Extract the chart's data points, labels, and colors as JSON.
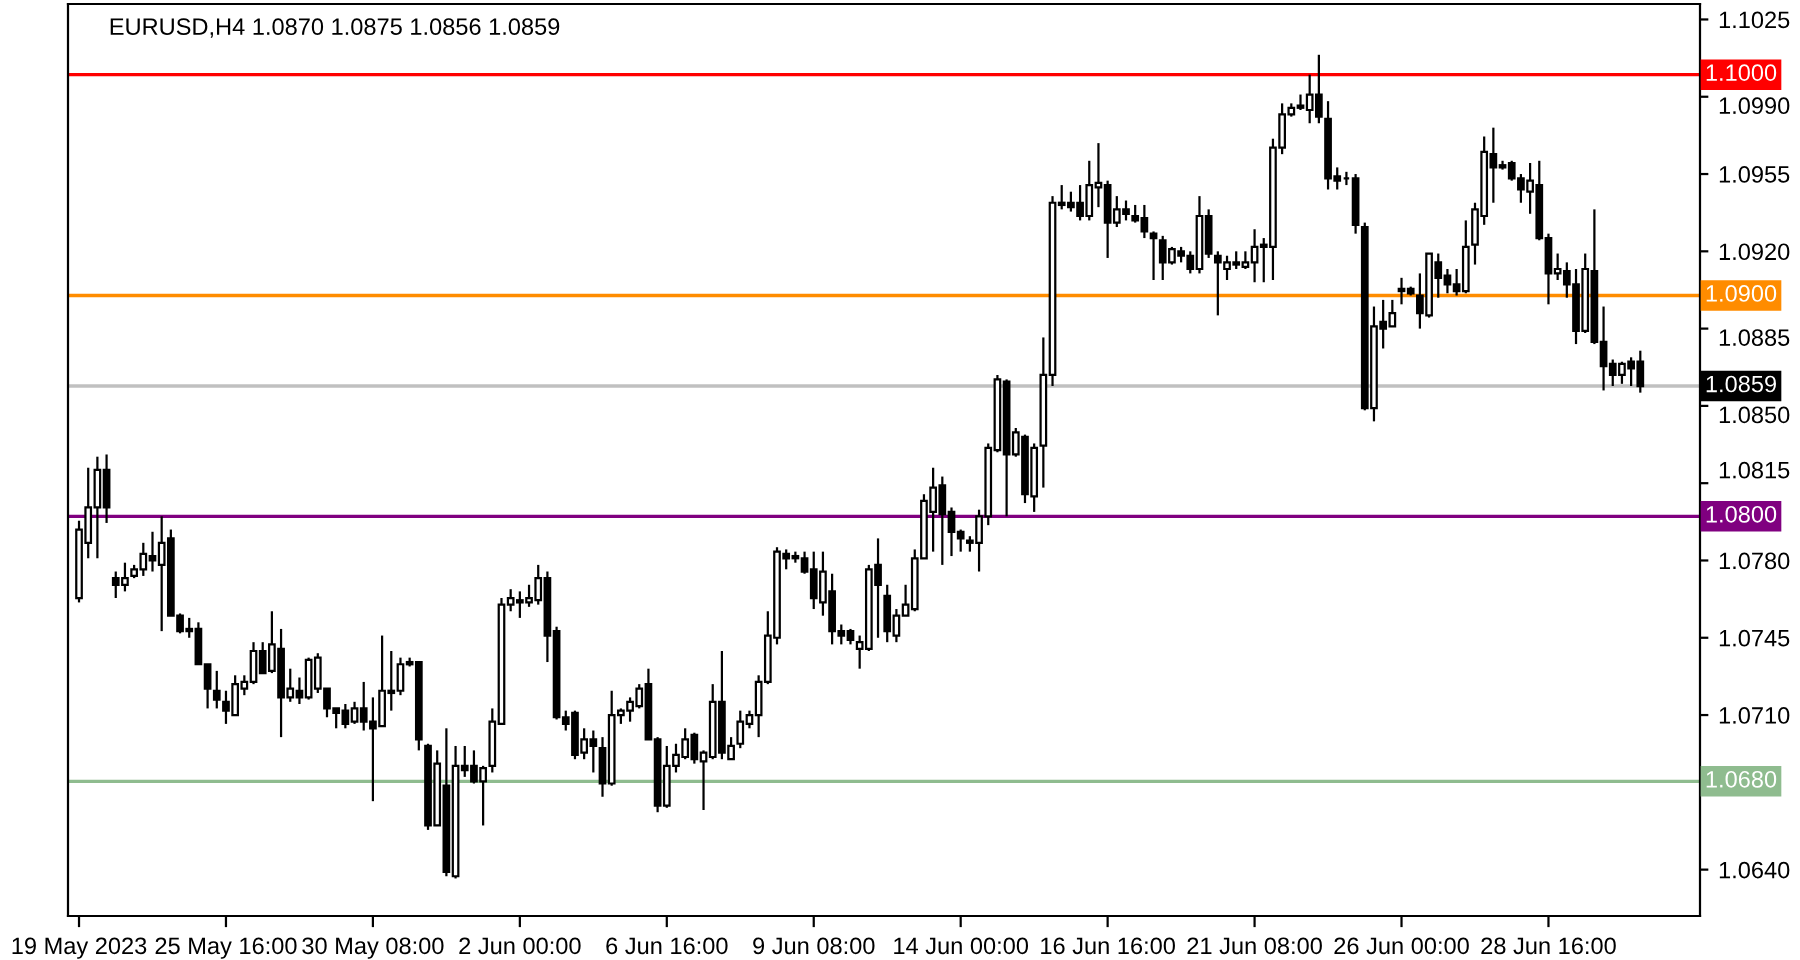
{
  "chart_data": {
    "type": "candlestick",
    "title": "EURUSD,H4 1.0870 1.0875 1.0856 1.0859",
    "categories": [
      "19 May 2023",
      null,
      null,
      null,
      null,
      null,
      null,
      null,
      null,
      null,
      null,
      null,
      null,
      null,
      null,
      null,
      "25 May 16:00",
      null,
      null,
      null,
      null,
      null,
      null,
      null,
      null,
      null,
      null,
      null,
      null,
      null,
      null,
      null,
      "30 May 08:00",
      null,
      null,
      null,
      null,
      null,
      null,
      null,
      null,
      null,
      null,
      null,
      null,
      null,
      null,
      null,
      "2 Jun 00:00",
      null,
      null,
      null,
      null,
      null,
      null,
      null,
      null,
      null,
      null,
      null,
      null,
      null,
      null,
      null,
      "6 Jun 16:00",
      null,
      null,
      null,
      null,
      null,
      null,
      null,
      null,
      null,
      null,
      null,
      null,
      null,
      null,
      null,
      "9 Jun 08:00",
      null,
      null,
      null,
      null,
      null,
      null,
      null,
      null,
      null,
      null,
      null,
      null,
      null,
      null,
      null,
      "14 Jun 00:00",
      null,
      null,
      null,
      null,
      null,
      null,
      null,
      null,
      null,
      null,
      null,
      null,
      null,
      null,
      null,
      "16 Jun 16:00",
      null,
      null,
      null,
      null,
      null,
      null,
      null,
      null,
      null,
      null,
      null,
      null,
      null,
      null,
      null,
      "21 Jun 08:00",
      null,
      null,
      null,
      null,
      null,
      null,
      null,
      null,
      null,
      null,
      null,
      null,
      null,
      null,
      null,
      "26 Jun 00:00",
      null,
      null,
      null,
      null,
      null,
      null,
      null,
      null,
      null,
      null,
      null,
      null,
      null,
      null,
      null,
      "28 Jun 16:00",
      null,
      null,
      null,
      null,
      null,
      null,
      null,
      null,
      null,
      null
    ],
    "ohlc": [
      [
        1.0763,
        1.0798,
        1.0761,
        1.0794
      ],
      [
        1.0788,
        1.0822,
        1.0781,
        1.0804
      ],
      [
        1.0804,
        1.0827,
        1.0781,
        1.0821
      ],
      [
        1.0821,
        1.0828,
        1.0797,
        1.0804
      ],
      [
        1.0772,
        1.0775,
        1.0763,
        1.0769
      ],
      [
        1.0769,
        1.0779,
        1.0766,
        1.0772
      ],
      [
        1.0773,
        1.0778,
        1.0772,
        1.0776
      ],
      [
        1.0776,
        1.0788,
        1.0773,
        1.0783
      ],
      [
        1.0782,
        1.0793,
        1.0775,
        1.078
      ],
      [
        1.0778,
        1.08,
        1.0748,
        1.0788
      ],
      [
        1.079,
        1.0794,
        1.0755,
        1.0755
      ],
      [
        1.0755,
        1.0756,
        1.0747,
        1.0748
      ],
      [
        1.0749,
        1.0754,
        1.0745,
        1.0748
      ],
      [
        1.0749,
        1.0752,
        1.0733,
        1.0733
      ],
      [
        1.0733,
        1.0733,
        1.0713,
        1.0722
      ],
      [
        1.0721,
        1.073,
        1.0713,
        1.0717
      ],
      [
        1.0716,
        1.0721,
        1.0706,
        1.0712
      ],
      [
        1.071,
        1.0728,
        1.071,
        1.0724
      ],
      [
        1.0722,
        1.0728,
        1.0719,
        1.0725
      ],
      [
        1.0725,
        1.0743,
        1.0724,
        1.0739
      ],
      [
        1.0739,
        1.0743,
        1.0729,
        1.0729
      ],
      [
        1.073,
        1.0757,
        1.0729,
        1.0742
      ],
      [
        1.074,
        1.0749,
        1.07,
        1.0718
      ],
      [
        1.0718,
        1.0731,
        1.0716,
        1.0722
      ],
      [
        1.0721,
        1.0727,
        1.0715,
        1.0718
      ],
      [
        1.0718,
        1.0736,
        1.0717,
        1.0735
      ],
      [
        1.0722,
        1.0738,
        1.072,
        1.0736
      ],
      [
        1.0722,
        1.0722,
        1.0709,
        1.0713
      ],
      [
        1.0713,
        1.0713,
        1.0704,
        1.0711
      ],
      [
        1.0712,
        1.0715,
        1.0704,
        1.0706
      ],
      [
        1.0707,
        1.0716,
        1.0706,
        1.0713
      ],
      [
        1.0713,
        1.0725,
        1.0703,
        1.0707
      ],
      [
        1.0707,
        1.0718,
        1.0671,
        1.0704
      ],
      [
        1.0705,
        1.0746,
        1.0705,
        1.0721
      ],
      [
        1.072,
        1.0739,
        1.0712,
        1.0721
      ],
      [
        1.0721,
        1.0736,
        1.0719,
        1.0733
      ],
      [
        1.0733,
        1.0736,
        1.0732,
        1.0734
      ],
      [
        1.0734,
        1.0734,
        1.0694,
        1.0699
      ],
      [
        1.0696,
        1.0697,
        1.0658,
        1.066
      ],
      [
        1.066,
        1.0694,
        1.066,
        1.0688
      ],
      [
        1.0678,
        1.0704,
        1.0637,
        1.0639
      ],
      [
        1.0637,
        1.0696,
        1.0636,
        1.0687
      ],
      [
        1.0687,
        1.0696,
        1.0682,
        1.0685
      ],
      [
        1.0687,
        1.0694,
        1.0679,
        1.068
      ],
      [
        1.068,
        1.0687,
        1.066,
        1.0686
      ],
      [
        1.0687,
        1.0713,
        1.0684,
        1.0707
      ],
      [
        1.0706,
        1.0763,
        1.0706,
        1.076
      ],
      [
        1.076,
        1.0767,
        1.0757,
        1.0763
      ],
      [
        1.0762,
        1.0766,
        1.0754,
        1.0761
      ],
      [
        1.0761,
        1.0769,
        1.0759,
        1.0763
      ],
      [
        1.0762,
        1.0778,
        1.076,
        1.0772
      ],
      [
        1.0772,
        1.0775,
        1.0734,
        1.0746
      ],
      [
        1.0748,
        1.075,
        1.0708,
        1.0709
      ],
      [
        1.0709,
        1.0712,
        1.0703,
        1.0706
      ],
      [
        1.0711,
        1.0712,
        1.069,
        1.0692
      ],
      [
        1.0693,
        1.0704,
        1.069,
        1.0699
      ],
      [
        1.0699,
        1.0703,
        1.0684,
        1.0696
      ],
      [
        1.0695,
        1.07,
        1.0673,
        1.0679
      ],
      [
        1.0679,
        1.0721,
        1.0678,
        1.071
      ],
      [
        1.071,
        1.0713,
        1.0706,
        1.0712
      ],
      [
        1.0712,
        1.0718,
        1.0707,
        1.0716
      ],
      [
        1.0714,
        1.0724,
        1.0713,
        1.0722
      ],
      [
        1.0724,
        1.0731,
        1.0699,
        1.0699
      ],
      [
        1.0699,
        1.07,
        1.0666,
        1.0669
      ],
      [
        1.0669,
        1.0696,
        1.0668,
        1.0687
      ],
      [
        1.0687,
        1.0697,
        1.0684,
        1.0692
      ],
      [
        1.0691,
        1.0704,
        1.069,
        1.0699
      ],
      [
        1.0701,
        1.0702,
        1.0688,
        1.069
      ],
      [
        1.0689,
        1.0694,
        1.0667,
        1.0693
      ],
      [
        1.0691,
        1.0724,
        1.069,
        1.0716
      ],
      [
        1.0716,
        1.0739,
        1.069,
        1.0693
      ],
      [
        1.069,
        1.07,
        1.069,
        1.0696
      ],
      [
        1.0697,
        1.0712,
        1.0695,
        1.0707
      ],
      [
        1.0706,
        1.0712,
        1.0704,
        1.071
      ],
      [
        1.071,
        1.0728,
        1.07,
        1.0725
      ],
      [
        1.0725,
        1.0757,
        1.0724,
        1.0746
      ],
      [
        1.0745,
        1.0786,
        1.0742,
        1.0784
      ],
      [
        1.0783,
        1.0785,
        1.0776,
        1.0781
      ],
      [
        1.0781,
        1.0784,
        1.0779,
        1.0782
      ],
      [
        1.0781,
        1.0784,
        1.0774,
        1.0775
      ],
      [
        1.0776,
        1.0784,
        1.0758,
        1.0763
      ],
      [
        1.0761,
        1.0784,
        1.0755,
        1.0775
      ],
      [
        1.0766,
        1.0774,
        1.0742,
        1.0748
      ],
      [
        1.0748,
        1.0751,
        1.0742,
        1.0746
      ],
      [
        1.0748,
        1.0749,
        1.0742,
        1.0744
      ],
      [
        1.074,
        1.0746,
        1.0731,
        1.0743
      ],
      [
        1.074,
        1.0778,
        1.0739,
        1.0776
      ],
      [
        1.0778,
        1.079,
        1.0745,
        1.0769
      ],
      [
        1.0764,
        1.0769,
        1.0743,
        1.0748
      ],
      [
        1.0746,
        1.0758,
        1.0743,
        1.0755
      ],
      [
        1.0755,
        1.0769,
        1.0755,
        1.076
      ],
      [
        1.0758,
        1.0785,
        1.0757,
        1.0781
      ],
      [
        1.0781,
        1.081,
        1.0781,
        1.0807
      ],
      [
        1.0802,
        1.0822,
        1.0784,
        1.0813
      ],
      [
        1.0814,
        1.0818,
        1.0778,
        1.0801
      ],
      [
        1.0802,
        1.0804,
        1.0782,
        1.0793
      ],
      [
        1.0793,
        1.0794,
        1.0784,
        1.079
      ],
      [
        1.0789,
        1.0791,
        1.0784,
        1.0788
      ],
      [
        1.0788,
        1.0803,
        1.0775,
        1.08
      ],
      [
        1.08,
        1.0833,
        1.0796,
        1.0831
      ],
      [
        1.083,
        1.0864,
        1.0829,
        1.0862
      ],
      [
        1.0861,
        1.0862,
        1.08,
        1.0828
      ],
      [
        1.0828,
        1.084,
        1.0827,
        1.0838
      ],
      [
        1.0836,
        1.0837,
        1.0806,
        1.081
      ],
      [
        1.0809,
        1.0833,
        1.0802,
        1.0831
      ],
      [
        1.0832,
        1.0881,
        1.0813,
        1.0864
      ],
      [
        1.0864,
        1.0945,
        1.0859,
        1.0942
      ],
      [
        1.0942,
        1.095,
        1.0939,
        1.0941
      ],
      [
        1.0942,
        1.0947,
        1.0938,
        1.094
      ],
      [
        1.0942,
        1.095,
        1.0934,
        1.0936
      ],
      [
        1.0936,
        1.0961,
        1.0934,
        1.095
      ],
      [
        1.0949,
        1.0969,
        1.094,
        1.0951
      ],
      [
        1.095,
        1.0952,
        1.0917,
        1.0933
      ],
      [
        1.0933,
        1.0945,
        1.0931,
        1.0939
      ],
      [
        1.0939,
        1.0943,
        1.0934,
        1.0937
      ],
      [
        1.0936,
        1.0941,
        1.0933,
        1.0934
      ],
      [
        1.0935,
        1.0941,
        1.0926,
        1.0929
      ],
      [
        1.0928,
        1.0929,
        1.0907,
        1.0926
      ],
      [
        1.0925,
        1.0927,
        1.0907,
        1.0915
      ],
      [
        1.0915,
        1.0922,
        1.0914,
        1.0921
      ],
      [
        1.092,
        1.0922,
        1.0915,
        1.0918
      ],
      [
        1.0918,
        1.092,
        1.091,
        1.0912
      ],
      [
        1.0912,
        1.0945,
        1.091,
        1.0936
      ],
      [
        1.0936,
        1.0939,
        1.0917,
        1.0919
      ],
      [
        1.0918,
        1.092,
        1.0891,
        1.0915
      ],
      [
        1.0912,
        1.0918,
        1.0907,
        1.0915
      ],
      [
        1.0915,
        1.092,
        1.0912,
        1.0914
      ],
      [
        1.0913,
        1.092,
        1.0912,
        1.0915
      ],
      [
        1.0915,
        1.093,
        1.0906,
        1.0922
      ],
      [
        1.0922,
        1.0926,
        1.0906,
        1.0923
      ],
      [
        1.0922,
        1.0971,
        1.0907,
        1.0967
      ],
      [
        1.0967,
        1.0987,
        1.0964,
        1.0982
      ],
      [
        1.0982,
        1.0987,
        1.0981,
        1.0985
      ],
      [
        1.0985,
        1.0991,
        1.0984,
        1.0986
      ],
      [
        1.0984,
        1.1,
        1.0978,
        1.0991
      ],
      [
        1.0991,
        1.1009,
        1.0978,
        1.0981
      ],
      [
        1.098,
        1.0988,
        1.0948,
        1.0953
      ],
      [
        1.0954,
        1.0958,
        1.0948,
        1.0952
      ],
      [
        1.0953,
        1.0956,
        1.095,
        1.0953
      ],
      [
        1.0953,
        1.0955,
        1.0928,
        1.0932
      ],
      [
        1.0931,
        1.0933,
        1.0848,
        1.0849
      ],
      [
        1.0849,
        1.0895,
        1.0843,
        1.0886
      ],
      [
        1.0888,
        1.0898,
        1.0876,
        1.0885
      ],
      [
        1.0886,
        1.0898,
        1.0886,
        1.0892
      ],
      [
        1.0903,
        1.0908,
        1.0896,
        1.0902
      ],
      [
        1.0903,
        1.0904,
        1.09,
        1.0901
      ],
      [
        1.09,
        1.091,
        1.0885,
        1.0892
      ],
      [
        1.0891,
        1.0919,
        1.089,
        1.0919
      ],
      [
        1.0915,
        1.0919,
        1.0899,
        1.0908
      ],
      [
        1.0909,
        1.0912,
        1.0901,
        1.0905
      ],
      [
        1.0905,
        1.0912,
        1.09,
        1.0902
      ],
      [
        1.0902,
        1.0934,
        1.0901,
        1.0922
      ],
      [
        1.0923,
        1.0942,
        1.0914,
        1.0939
      ],
      [
        1.0936,
        1.0972,
        1.0932,
        1.0965
      ],
      [
        1.0964,
        1.0976,
        1.0942,
        1.0958
      ],
      [
        1.0959,
        1.0961,
        1.0957,
        1.0958
      ],
      [
        1.096,
        1.0961,
        1.0952,
        1.0953
      ],
      [
        1.0953,
        1.0955,
        1.0942,
        1.0948
      ],
      [
        1.0947,
        1.096,
        1.0937,
        1.0952
      ],
      [
        1.095,
        1.0961,
        1.0925,
        1.0926
      ],
      [
        1.0926,
        1.0928,
        1.0896,
        1.091
      ],
      [
        1.091,
        1.0919,
        1.0907,
        1.0912
      ],
      [
        1.0911,
        1.0915,
        1.0899,
        1.0905
      ],
      [
        1.0905,
        1.0912,
        1.0878,
        1.0884
      ],
      [
        1.0884,
        1.0919,
        1.0883,
        1.0912
      ],
      [
        1.0911,
        1.0939,
        1.0878,
        1.0879
      ],
      [
        1.0879,
        1.0895,
        1.0857,
        1.0868
      ],
      [
        1.0869,
        1.0871,
        1.0859,
        1.0864
      ],
      [
        1.0864,
        1.087,
        1.086,
        1.0869
      ],
      [
        1.087,
        1.0872,
        1.0859,
        1.0867
      ],
      [
        1.087,
        1.0875,
        1.0856,
        1.0859
      ]
    ],
    "ylim": [
      1.0619,
      1.1032
    ],
    "yticks": [
      1.1025,
      {
        "value": 1.099,
        "label": "1.0990"
      },
      1.0955,
      {
        "value": 1.092,
        "label": "1.0920"
      },
      1.0885,
      {
        "value": 1.085,
        "label": "1.0850"
      },
      1.0815,
      {
        "value": 1.078,
        "label": "1.0780"
      },
      1.0745,
      {
        "value": 1.071,
        "label": "1.0710"
      },
      {
        "value": 1.064,
        "label": "1.0640"
      }
    ],
    "ref_lines": [
      {
        "axis": "y",
        "value": 1.1,
        "label": "1.1000",
        "color": "#ff0000",
        "line_style": "solid"
      },
      {
        "axis": "y",
        "value": 1.09,
        "label": "1.0900",
        "color": "#ff8c00",
        "line_style": "solid"
      },
      {
        "axis": "y",
        "value": 1.0859,
        "label": "1.0859",
        "color": "#c0c0c0",
        "line_style": "solid"
      },
      {
        "axis": "y",
        "value": 1.08,
        "label": "1.0800",
        "color": "#800080",
        "line_style": "solid"
      },
      {
        "axis": "y",
        "value": 1.068,
        "label": "1.0680",
        "color": "#8fbc8f",
        "line_style": "solid"
      }
    ],
    "grid": false,
    "legend": false
  }
}
